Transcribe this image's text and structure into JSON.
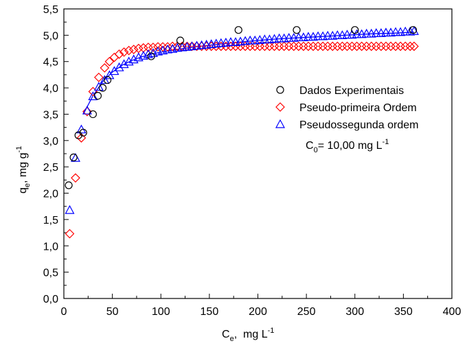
{
  "chart_data": {
    "type": "scatter",
    "xlim": [
      0,
      400
    ],
    "ylim": [
      0.0,
      5.5
    ],
    "x_ticks": [
      0,
      50,
      100,
      150,
      200,
      250,
      300,
      350,
      400
    ],
    "x_tick_labels": [
      "0",
      "50",
      "100",
      "150",
      "200",
      "250",
      "300",
      "350",
      "400"
    ],
    "y_ticks": [
      0.0,
      0.5,
      1.0,
      1.5,
      2.0,
      2.5,
      3.0,
      3.5,
      4.0,
      4.5,
      5.0,
      5.5
    ],
    "y_tick_labels": [
      "0,0",
      "0,5",
      "1,0",
      "1,5",
      "2,0",
      "2,5",
      "3,0",
      "3,5",
      "4,0",
      "4,5",
      "5,0",
      "5,5"
    ],
    "xlabel": {
      "main": "C",
      "sub": "e",
      "mid": ",  mg L",
      "sup": "-1"
    },
    "ylabel": {
      "main": "q",
      "sub": "e",
      "mid": ", mg g",
      "sup": "-1"
    },
    "grid": false,
    "legend_position": "upper-right",
    "annotation": {
      "main": "C",
      "sub": "0",
      "mid": "= 10,00 mg L",
      "sup": "-1"
    },
    "series": [
      {
        "name": "Dados Experimentais",
        "marker": "circle",
        "color": "#000000",
        "x": [
          5,
          10,
          15,
          20,
          30,
          35,
          40,
          45,
          90,
          120,
          180,
          240,
          300,
          360
        ],
        "y": [
          2.15,
          2.68,
          3.1,
          3.15,
          3.5,
          3.85,
          4.0,
          4.15,
          4.6,
          4.9,
          5.1,
          5.1,
          5.1,
          5.1
        ]
      },
      {
        "name": "Pseudo-primeira Ordem",
        "marker": "diamond",
        "color": "#ff0000",
        "x": [
          6,
          12,
          18,
          24,
          30,
          36,
          42,
          47,
          52,
          57,
          62,
          67,
          72,
          77,
          82,
          87,
          92,
          97,
          102,
          107,
          112,
          117,
          122,
          127,
          132,
          137,
          142,
          147,
          152,
          157,
          162,
          167,
          172,
          177,
          182,
          187,
          192,
          197,
          202,
          207,
          212,
          217,
          222,
          227,
          232,
          237,
          242,
          247,
          252,
          257,
          262,
          267,
          272,
          277,
          282,
          287,
          292,
          297,
          302,
          307,
          312,
          317,
          322,
          327,
          332,
          337,
          342,
          347,
          352,
          357,
          361
        ],
        "y": [
          1.23,
          2.29,
          3.05,
          3.55,
          3.93,
          4.2,
          4.38,
          4.5,
          4.58,
          4.64,
          4.68,
          4.71,
          4.73,
          4.75,
          4.76,
          4.77,
          4.77,
          4.78,
          4.78,
          4.78,
          4.79,
          4.79,
          4.79,
          4.79,
          4.79,
          4.79,
          4.79,
          4.79,
          4.79,
          4.79,
          4.79,
          4.79,
          4.79,
          4.79,
          4.79,
          4.79,
          4.79,
          4.79,
          4.79,
          4.79,
          4.79,
          4.79,
          4.79,
          4.79,
          4.79,
          4.79,
          4.79,
          4.79,
          4.79,
          4.79,
          4.79,
          4.79,
          4.79,
          4.79,
          4.79,
          4.79,
          4.79,
          4.79,
          4.79,
          4.79,
          4.79,
          4.79,
          4.79,
          4.79,
          4.79,
          4.79,
          4.79,
          4.79,
          4.79,
          4.79,
          4.79
        ]
      },
      {
        "name": "Pseudossegunda ordem",
        "marker": "triangle",
        "color": "#0000ff",
        "x": [
          6,
          12,
          18,
          24,
          30,
          36,
          42,
          47,
          52,
          57,
          62,
          67,
          72,
          77,
          82,
          87,
          92,
          97,
          102,
          107,
          112,
          117,
          122,
          127,
          132,
          137,
          142,
          147,
          152,
          157,
          162,
          167,
          172,
          177,
          182,
          187,
          192,
          197,
          202,
          207,
          212,
          217,
          222,
          227,
          232,
          237,
          242,
          247,
          252,
          257,
          262,
          267,
          272,
          277,
          282,
          287,
          292,
          297,
          302,
          307,
          312,
          317,
          322,
          327,
          332,
          337,
          342,
          347,
          352,
          357,
          361
        ],
        "y": [
          1.68,
          2.67,
          3.21,
          3.57,
          3.84,
          4.02,
          4.15,
          4.24,
          4.32,
          4.39,
          4.45,
          4.5,
          4.54,
          4.58,
          4.61,
          4.64,
          4.66,
          4.69,
          4.71,
          4.73,
          4.74,
          4.76,
          4.77,
          4.78,
          4.79,
          4.8,
          4.81,
          4.82,
          4.83,
          4.84,
          4.85,
          4.86,
          4.87,
          4.87,
          4.88,
          4.89,
          4.9,
          4.9,
          4.91,
          4.92,
          4.92,
          4.93,
          4.94,
          4.94,
          4.95,
          4.95,
          4.96,
          4.96,
          4.97,
          4.97,
          4.98,
          4.98,
          4.99,
          4.99,
          5.0,
          5.0,
          5.01,
          5.01,
          5.02,
          5.02,
          5.03,
          5.03,
          5.04,
          5.04,
          5.05,
          5.05,
          5.06,
          5.06,
          5.07,
          5.07,
          5.08
        ]
      }
    ],
    "fit_line": {
      "color": "#0000ff",
      "x": [
        20,
        30,
        40,
        50,
        60,
        70,
        80,
        90,
        100,
        120,
        140,
        160,
        180,
        200,
        220,
        240,
        260,
        280,
        300,
        320,
        340,
        361
      ],
      "y": [
        3.5,
        3.85,
        4.12,
        4.3,
        4.43,
        4.52,
        4.59,
        4.64,
        4.68,
        4.74,
        4.79,
        4.83,
        4.87,
        4.9,
        4.93,
        4.95,
        4.97,
        4.99,
        5.01,
        5.03,
        5.04,
        5.06
      ]
    }
  }
}
